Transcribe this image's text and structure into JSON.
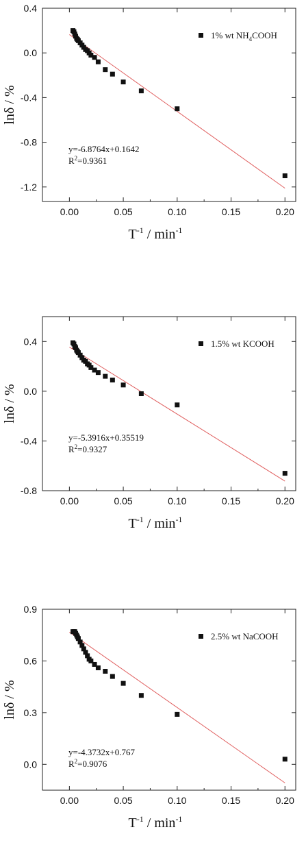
{
  "chart_data": [
    {
      "type": "scatter",
      "xlim": [
        -0.025,
        0.21
      ],
      "ylim": [
        -1.33,
        0.4
      ],
      "xticks": [
        0.0,
        0.05,
        0.1,
        0.15,
        0.2
      ],
      "xtick_labels": [
        "0.00",
        "0.05",
        "0.10",
        "0.15",
        "0.20"
      ],
      "yticks": [
        0.4,
        0.0,
        -0.4,
        -0.8,
        -1.2
      ],
      "ytick_labels": [
        "0.4",
        "0.0",
        "-0.4",
        "-0.8",
        "-1.2"
      ],
      "ylabel": "lnδ / %",
      "xlabel": {
        "base": "T",
        "sup1": "-1",
        "mid": " / min",
        "sup2": "-1"
      },
      "legend": {
        "prefix": "1% wt NH",
        "sub": "4",
        "suffix": "COOH",
        "position": "top-right"
      },
      "equation": {
        "line1": "y=-6.8764x+0.1642",
        "r2_prefix": "R",
        "r2_sup": "2",
        "r2_value": "=0.9361"
      },
      "fit": {
        "slope": -6.8764,
        "intercept": 0.1642,
        "color": "#e06060"
      },
      "series": [
        {
          "marker": "square",
          "color": "#111111",
          "x": [
            0.0033,
            0.0042,
            0.005,
            0.0058,
            0.0067,
            0.0075,
            0.0083,
            0.01,
            0.0117,
            0.0133,
            0.015,
            0.0167,
            0.0183,
            0.02,
            0.0233,
            0.0267,
            0.0333,
            0.04,
            0.05,
            0.0667,
            0.1,
            0.2
          ],
          "y": [
            0.2,
            0.19,
            0.17,
            0.15,
            0.13,
            0.12,
            0.11,
            0.09,
            0.07,
            0.05,
            0.03,
            0.02,
            0.0,
            -0.02,
            -0.04,
            -0.08,
            -0.15,
            -0.19,
            -0.26,
            -0.34,
            -0.5,
            -1.1
          ]
        }
      ]
    },
    {
      "type": "scatter",
      "xlim": [
        -0.025,
        0.21
      ],
      "ylim": [
        -0.8,
        0.6
      ],
      "xticks": [
        0.0,
        0.05,
        0.1,
        0.15,
        0.2
      ],
      "xtick_labels": [
        "0.00",
        "0.05",
        "0.10",
        "0.15",
        "0.20"
      ],
      "yticks": [
        0.4,
        0.0,
        -0.4,
        -0.8
      ],
      "ytick_labels": [
        "0.4",
        "0.0",
        "-0.4",
        "-0.8"
      ],
      "ylabel": "lnδ / %",
      "xlabel": {
        "base": "T",
        "sup1": "-1",
        "mid": " / min",
        "sup2": "-1"
      },
      "legend": {
        "prefix": "1.5% wt KCOOH",
        "sub": "",
        "suffix": "",
        "position": "top-right"
      },
      "equation": {
        "line1": "y=-5.3916x+0.35519",
        "r2_prefix": "R",
        "r2_sup": "2",
        "r2_value": "=0.9327"
      },
      "fit": {
        "slope": -5.3916,
        "intercept": 0.35519,
        "color": "#e06060"
      },
      "series": [
        {
          "marker": "square",
          "color": "#111111",
          "x": [
            0.0033,
            0.0042,
            0.005,
            0.0058,
            0.0067,
            0.0075,
            0.0083,
            0.01,
            0.0117,
            0.0133,
            0.015,
            0.0167,
            0.0183,
            0.02,
            0.0233,
            0.0267,
            0.0333,
            0.04,
            0.05,
            0.0667,
            0.1,
            0.2
          ],
          "y": [
            0.39,
            0.38,
            0.36,
            0.35,
            0.33,
            0.32,
            0.31,
            0.29,
            0.27,
            0.25,
            0.24,
            0.22,
            0.21,
            0.19,
            0.17,
            0.15,
            0.12,
            0.09,
            0.05,
            -0.02,
            -0.11,
            -0.66
          ]
        }
      ]
    },
    {
      "type": "scatter",
      "xlim": [
        -0.025,
        0.21
      ],
      "ylim": [
        -0.15,
        0.9
      ],
      "xticks": [
        0.0,
        0.05,
        0.1,
        0.15,
        0.2
      ],
      "xtick_labels": [
        "0.00",
        "0.05",
        "0.10",
        "0.15",
        "0.20"
      ],
      "yticks": [
        0.9,
        0.6,
        0.3,
        0.0
      ],
      "ytick_labels": [
        "0.9",
        "0.6",
        "0.3",
        "0.0"
      ],
      "ylabel": "lnδ / %",
      "xlabel": {
        "base": "T",
        "sup1": "-1",
        "mid": " / min",
        "sup2": "-1"
      },
      "legend": {
        "prefix": "2.5% wt NaCOOH",
        "sub": "",
        "suffix": "",
        "position": "top-right"
      },
      "equation": {
        "line1": "y=-4.3732x+0.767",
        "r2_prefix": "R",
        "r2_sup": "2",
        "r2_value": "=0.9076"
      },
      "fit": {
        "slope": -4.3732,
        "intercept": 0.767,
        "color": "#e06060"
      },
      "series": [
        {
          "marker": "square",
          "color": "#111111",
          "x": [
            0.0033,
            0.0042,
            0.005,
            0.0058,
            0.0067,
            0.0075,
            0.0083,
            0.01,
            0.0117,
            0.0133,
            0.015,
            0.0167,
            0.0183,
            0.02,
            0.0233,
            0.0267,
            0.0333,
            0.04,
            0.05,
            0.0667,
            0.1,
            0.2
          ],
          "y": [
            0.77,
            0.77,
            0.77,
            0.76,
            0.75,
            0.74,
            0.73,
            0.71,
            0.69,
            0.67,
            0.65,
            0.63,
            0.61,
            0.6,
            0.58,
            0.56,
            0.54,
            0.51,
            0.47,
            0.4,
            0.29,
            0.03
          ]
        }
      ]
    }
  ]
}
